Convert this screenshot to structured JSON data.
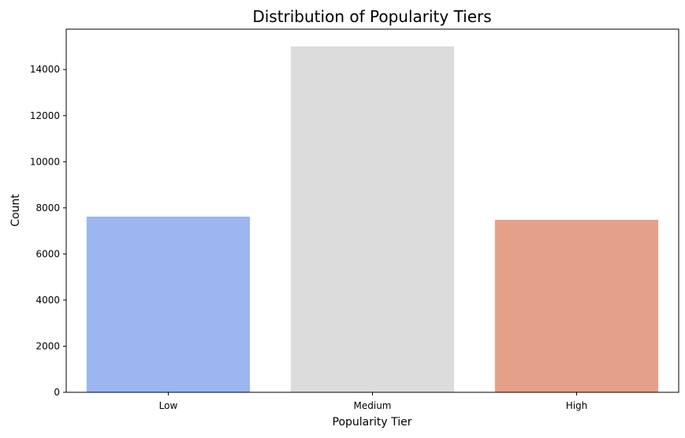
{
  "chart_data": {
    "type": "bar",
    "title": "Distribution of Popularity Tiers",
    "xlabel": "Popularity Tier",
    "ylabel": "Count",
    "categories": [
      "Low",
      "Medium",
      "High"
    ],
    "values": [
      7620,
      15000,
      7480
    ],
    "colors": [
      "#9bb6f0",
      "#dcdcdc",
      "#e5a089"
    ],
    "ylim": [
      0,
      15750
    ],
    "yticks": [
      0,
      2000,
      4000,
      6000,
      8000,
      10000,
      12000,
      14000
    ],
    "grid": false,
    "legend": "none"
  }
}
